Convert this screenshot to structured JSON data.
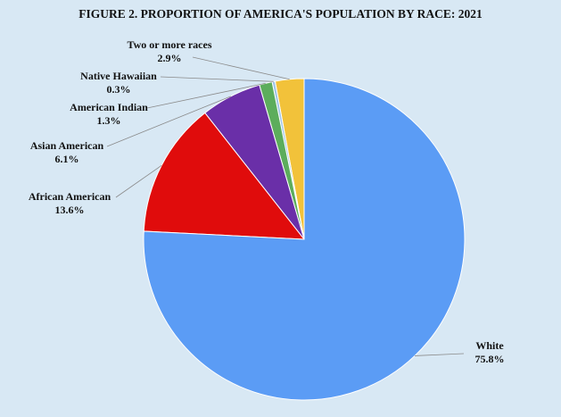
{
  "chart_data": {
    "type": "pie",
    "title": "FIGURE 2. PROPORTION OF AMERICA'S POPULATION BY RACE: 2021",
    "slices": [
      {
        "label": "Two or more races",
        "value": 2.9,
        "display": "2.9%",
        "color": "#f2c23a"
      },
      {
        "label": "Native Hawaiian",
        "value": 0.3,
        "display": "0.3%",
        "color": "#9fc4e8"
      },
      {
        "label": "American Indian",
        "value": 1.3,
        "display": "1.3%",
        "color": "#5cad5c"
      },
      {
        "label": "Asian American",
        "value": 6.1,
        "display": "6.1%",
        "color": "#6a2fa8"
      },
      {
        "label": "African American",
        "value": 13.6,
        "display": "13.6%",
        "color": "#e00c0c"
      },
      {
        "label": "White",
        "value": 75.8,
        "display": "75.8%",
        "color": "#5b9cf5"
      }
    ]
  }
}
